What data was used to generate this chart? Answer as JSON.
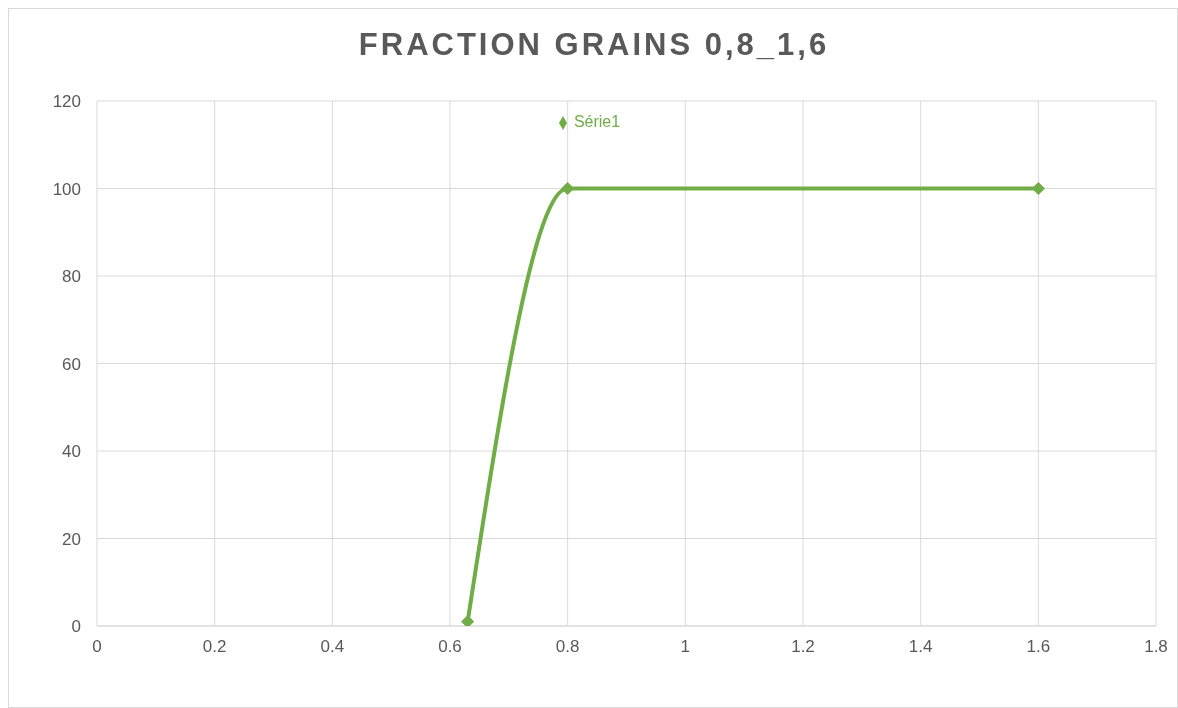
{
  "chart_data": {
    "type": "line",
    "title": "FRACTION GRAINS 0,8_1,6",
    "x": [
      0.63,
      0.8,
      1.6
    ],
    "series": [
      {
        "name": "Série1",
        "color": "#70ad47",
        "values": [
          1,
          100,
          100
        ]
      }
    ],
    "xlim": [
      0,
      1.8
    ],
    "xticks": [
      0,
      0.2,
      0.4,
      0.6,
      0.8,
      1,
      1.2,
      1.4,
      1.6,
      1.8
    ],
    "ylim": [
      0,
      120
    ],
    "yticks": [
      0,
      20,
      40,
      60,
      80,
      100,
      120
    ],
    "grid": true,
    "legend": "top",
    "marker": "diamond",
    "line_style": "solid"
  }
}
